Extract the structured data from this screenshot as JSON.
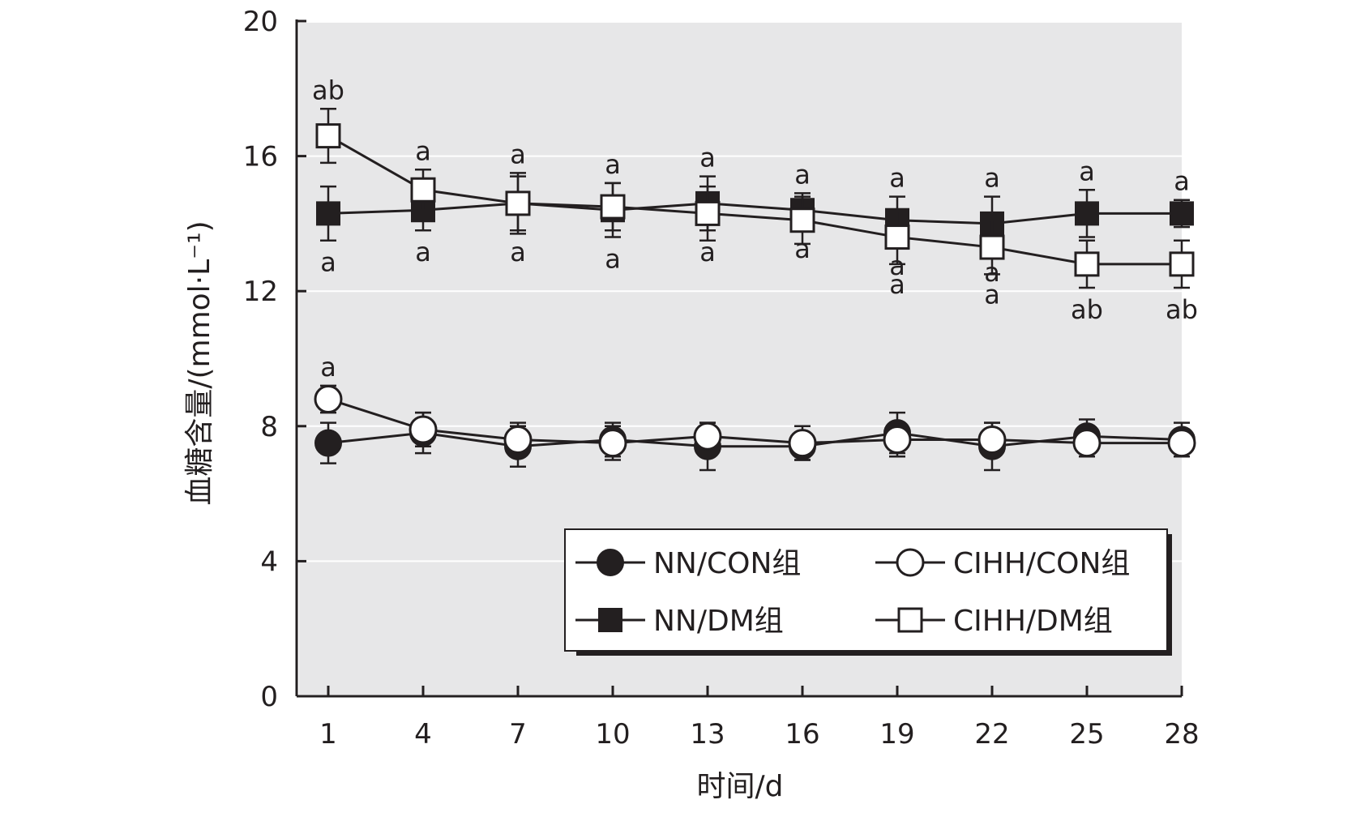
{
  "chart_data": {
    "type": "line",
    "title": "",
    "xlabel": "时间/d",
    "ylabel": "血糖含量/(mmol·L⁻¹)",
    "x": [
      1,
      4,
      7,
      10,
      13,
      16,
      19,
      22,
      25,
      28
    ],
    "x_ticks": [
      "1",
      "4",
      "7",
      "10",
      "13",
      "16",
      "19",
      "22",
      "25",
      "28"
    ],
    "ylim": [
      0,
      20
    ],
    "y_ticks": [
      "0",
      "4",
      "8",
      "12",
      "16",
      "20"
    ],
    "grid": true,
    "legend_position": "bottom-right",
    "series": [
      {
        "name": "NN/CON组",
        "marker": "filled-circle",
        "values": [
          7.5,
          7.8,
          7.4,
          7.6,
          7.4,
          7.4,
          7.8,
          7.4,
          7.7,
          7.6
        ],
        "errors": [
          0.6,
          0.6,
          0.6,
          0.5,
          0.7,
          0.4,
          0.6,
          0.7,
          0.5,
          0.5
        ]
      },
      {
        "name": "CIHH/CON组",
        "marker": "open-circle",
        "values": [
          8.8,
          7.9,
          7.6,
          7.5,
          7.7,
          7.5,
          7.6,
          7.6,
          7.5,
          7.5
        ],
        "errors": [
          0.4,
          0.5,
          0.5,
          0.5,
          0.4,
          0.5,
          0.5,
          0.5,
          0.4,
          0.4
        ]
      },
      {
        "name": "NN/DM组",
        "marker": "filled-square",
        "values": [
          14.3,
          14.4,
          14.6,
          14.4,
          14.6,
          14.4,
          14.1,
          14.0,
          14.3,
          14.3
        ],
        "errors": [
          0.8,
          0.6,
          0.8,
          0.8,
          0.8,
          0.5,
          0.7,
          0.8,
          0.7,
          0.4
        ]
      },
      {
        "name": "CIHH/DM组",
        "marker": "open-square",
        "values": [
          16.6,
          15.0,
          14.6,
          14.5,
          14.3,
          14.1,
          13.6,
          13.3,
          12.8,
          12.8
        ],
        "errors": [
          0.8,
          0.6,
          0.9,
          0.7,
          0.8,
          0.7,
          0.8,
          0.8,
          0.7,
          0.7
        ]
      }
    ],
    "annotations": {
      "above": [
        "ab",
        "a",
        "a",
        "a",
        "a",
        "a",
        "a",
        "a",
        "a",
        "a"
      ],
      "dm_below": [
        "a",
        "a",
        "a",
        "a",
        "a",
        "a",
        "a",
        "a",
        "ab",
        "ab"
      ],
      "dm_below_extra": [
        "",
        "",
        "",
        "",
        "",
        "",
        "a",
        "a",
        "",
        ""
      ],
      "con_above": [
        "a",
        "",
        "",
        "",
        "",
        "",
        "",
        "",
        "",
        ""
      ]
    }
  }
}
